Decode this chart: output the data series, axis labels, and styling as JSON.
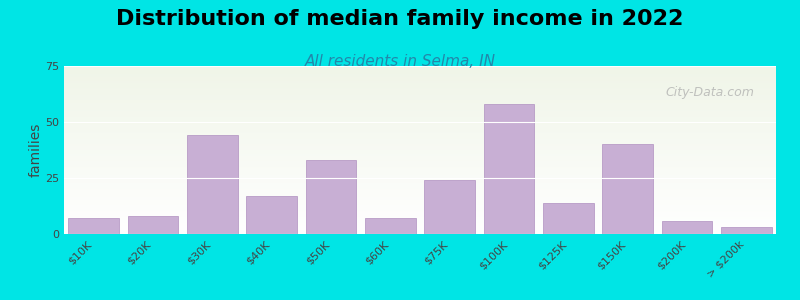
{
  "title": "Distribution of median family income in 2022",
  "subtitle": "All residents in Selma, IN",
  "xlabel": "",
  "ylabel": "families",
  "categories": [
    "$10K",
    "$20K",
    "$30K",
    "$40K",
    "$50K",
    "$60K",
    "$75K",
    "$100K",
    "$125K",
    "$150K",
    "$200K",
    "> $200k"
  ],
  "values": [
    7,
    8,
    44,
    17,
    33,
    7,
    24,
    58,
    14,
    40,
    6,
    3
  ],
  "bar_color": "#c8afd4",
  "bar_edge_color": "#b090c0",
  "background_color": "#00e5e5",
  "plot_bg_top": "#f0f5e8",
  "plot_bg_bottom": "#e8f0f8",
  "ylim": [
    0,
    75
  ],
  "yticks": [
    0,
    25,
    50,
    75
  ],
  "title_fontsize": 16,
  "subtitle_fontsize": 11,
  "ylabel_fontsize": 10,
  "watermark": "City-Data.com"
}
